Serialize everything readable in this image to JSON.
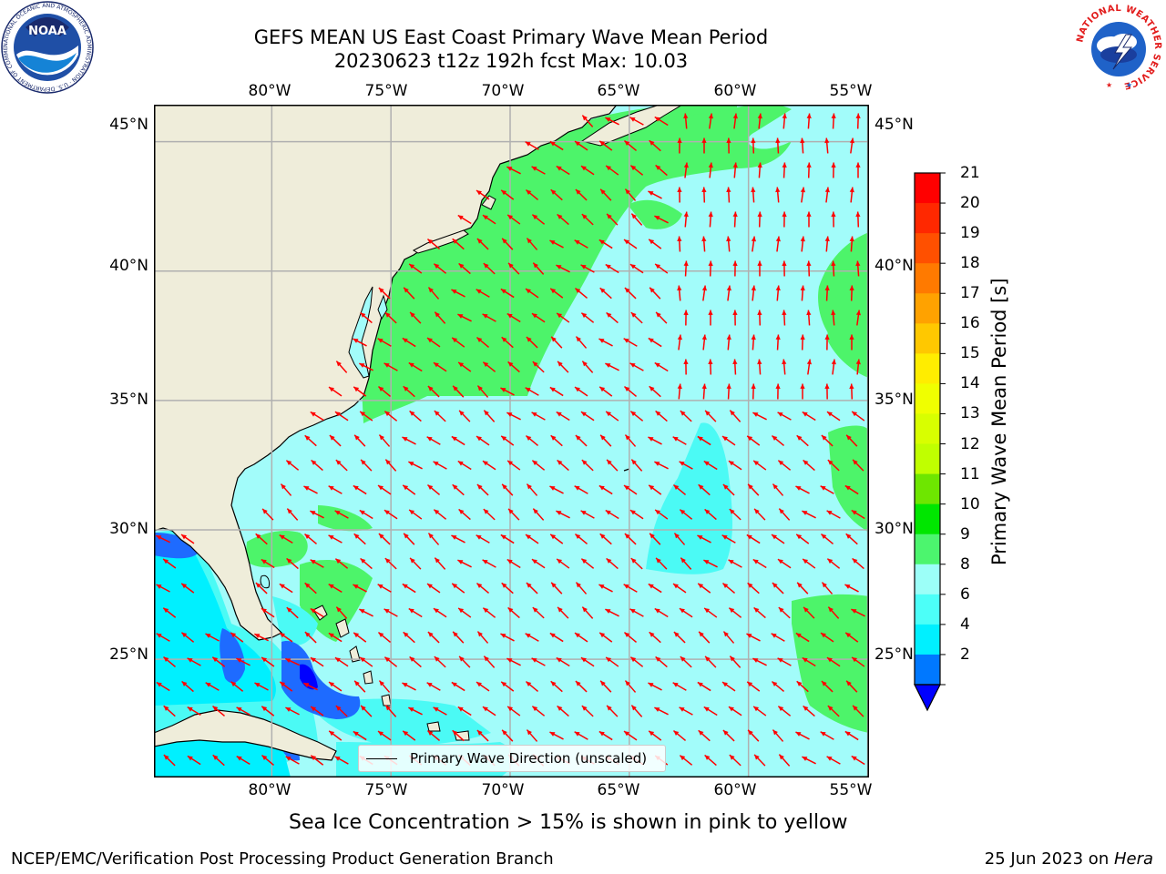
{
  "title": {
    "line1": "GEFS MEAN US East Coast Primary Wave Mean Period",
    "line2": "20230623 t12z 192h fcst   Max: 10.03"
  },
  "axes": {
    "longitude_ticks": [
      "80°W",
      "75°W",
      "70°W",
      "65°W",
      "60°W",
      "55°W"
    ],
    "latitude_ticks": [
      "45°N",
      "40°N",
      "35°N",
      "30°N",
      "25°N"
    ],
    "lon_range": [
      -85,
      -55
    ],
    "lat_range": [
      20.5,
      46.5
    ]
  },
  "legend": {
    "label": "Primary Wave Direction (unscaled)"
  },
  "colorbar": {
    "title": "Primary Wave Mean Period [s]",
    "tick_labels": [
      "21",
      "20",
      "19",
      "18",
      "17",
      "16",
      "15",
      "14",
      "13",
      "12",
      "11",
      "10",
      "9",
      "8",
      "6",
      "4",
      "2"
    ],
    "colors": [
      "#ff0000",
      "#ff2800",
      "#ff5000",
      "#ff7a00",
      "#ffa200",
      "#ffc800",
      "#ffed00",
      "#f0ff00",
      "#d8ff00",
      "#c0ff00",
      "#6ee600",
      "#00e600",
      "#4cf56e",
      "#9cfff8",
      "#4cfff8",
      "#00f0ff",
      "#0078ff"
    ],
    "extend_color": "#0000ff"
  },
  "colors": {
    "land": "#efedda",
    "period_9_10": "#4df46a",
    "period_8_9": "#a2fcfa",
    "period_6_8": "#4bfaf5",
    "period_4_6": "#00f0ff",
    "period_2_4": "#1e6bff",
    "period_below_2": "#0000ff",
    "arrow": "#ff0000",
    "grid": "#b0b0b0"
  },
  "footnote": "Sea Ice Concentration > 15% is shown in pink to yellow",
  "credit_left": "NCEP/EMC/Verification Post Processing Product Generation Branch",
  "credit_right_date": "25 Jun 2023 on ",
  "credit_right_host": "Hera",
  "logos": {
    "left": "NOAA",
    "left_ring": "NATIONAL OCEANIC AND ATMOSPHERIC ADMINISTRATION · U.S. DEPARTMENT OF COMMERCE",
    "right_ring": "NATIONAL WEATHER SERVICE"
  }
}
